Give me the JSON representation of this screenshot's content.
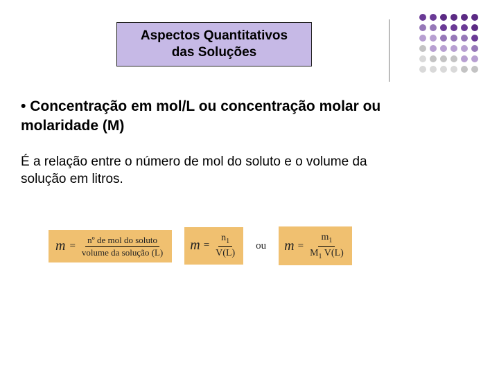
{
  "title": {
    "line1": "Aspectos Quantitativos",
    "line2": "das Soluções",
    "bg_color": "#c6b9e6",
    "border_color": "#222222",
    "font_size": 19
  },
  "decoration": {
    "divider_color": "#777777",
    "dot_colors_row": [
      "#5b2a84",
      "#6a3a96",
      "#9678b8",
      "#b79fd1",
      "#c3c3c3",
      "#d9d9d9"
    ],
    "dot_size": 10,
    "grid": 6
  },
  "subtitle": {
    "bullet": "•",
    "text": "Concentração em mol/L ou concentração molar ou molaridade (M)",
    "font_size": 21
  },
  "body": {
    "text": "É a relação entre o número de mol do soluto e o volume da solução em litros.",
    "font_size": 19
  },
  "formulas": {
    "box_bg": "#f0c070",
    "symbol": "m",
    "eq": "=",
    "f1": {
      "num": "nº de mol do soluto",
      "den": "volume da solução (L)"
    },
    "f2": {
      "num_base": "n",
      "num_sub": "1",
      "den": "V(L)"
    },
    "connector": "ou",
    "f3": {
      "num_base": "m",
      "num_sub": "1",
      "den_a": "M",
      "den_a_sub": "1",
      "den_b": " V(L)"
    }
  },
  "colors": {
    "page_bg": "#ffffff",
    "text": "#000000"
  }
}
